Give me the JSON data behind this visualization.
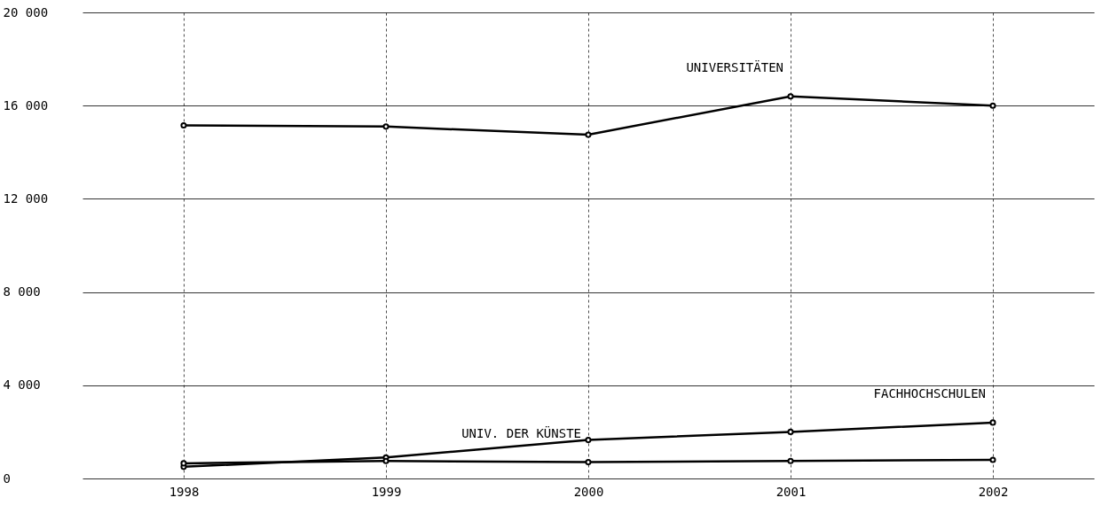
{
  "chart_data": {
    "type": "line",
    "x": [
      1998,
      1999,
      2000,
      2001,
      2002
    ],
    "series": [
      {
        "color": "#000000",
        "values": [
          15150,
          15100,
          14750,
          16400,
          16000
        ]
      },
      {
        "color": "#000000",
        "values": [
          500,
          900,
          1650,
          2000,
          2400
        ]
      },
      {
        "color": "#000000",
        "values": [
          650,
          750,
          700,
          750,
          800
        ]
      }
    ],
    "xlim": [
      1997.5,
      2002.5
    ],
    "xticks": [
      1998,
      1999,
      2000,
      2001,
      2002
    ],
    "ylim": [
      0,
      20000
    ],
    "yticks": [
      {
        "value": 0,
        "label": "0"
      },
      {
        "value": 4000,
        "label": "4 000"
      },
      {
        "value": 8000,
        "label": "8 000"
      },
      {
        "value": 12000,
        "label": "12 000"
      },
      {
        "value": 16000,
        "label": "16 000"
      },
      {
        "value": 20000,
        "label": "20 000"
      }
    ],
    "grid": true,
    "marker": "circle",
    "line_style": "solid",
    "annotations": [
      {
        "text": "UNIVERSITÄTEN",
        "x": 2001,
        "y": 16400
      },
      {
        "text": "FACHHOCHSCHULEN",
        "x": 2002,
        "y": 2400
      },
      {
        "text": "UNIV. DER KÜNSTE",
        "x": 2000,
        "y": 700
      }
    ]
  }
}
